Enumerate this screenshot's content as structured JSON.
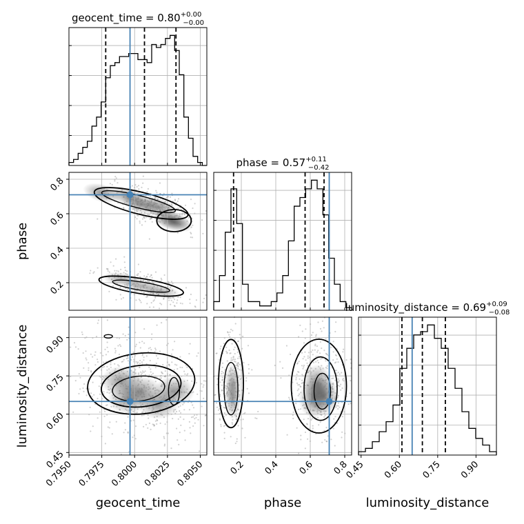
{
  "chart_data": {
    "type": "corner",
    "grid": true,
    "colors": {
      "truth": "#4682b4",
      "hist": "#000000",
      "scatter": "#777777",
      "grid": "#b0b0b0"
    },
    "parameters": [
      {
        "name": "geocent_time",
        "xlabel": "geocent_time",
        "title_main": "geocent_time = 0.80",
        "title_up": "+0.00",
        "title_down": "−0.00",
        "range": [
          0.795,
          0.8055
        ],
        "ticks": [
          0.795,
          0.7975,
          0.8,
          0.8025,
          0.805
        ],
        "tick_labels": [
          "0.7950",
          "0.7975",
          "0.8000",
          "0.8025",
          "0.8050"
        ],
        "truth": 0.79965,
        "quantiles": [
          0.7978,
          0.80075,
          0.80315
        ]
      },
      {
        "name": "phase",
        "xlabel": "phase",
        "ylabel": "phase",
        "title_main": "phase = 0.57",
        "title_up": "+0.11",
        "title_down": "−0.42",
        "range": [
          0.04,
          0.84
        ],
        "ticks": [
          0.2,
          0.4,
          0.6,
          0.8
        ],
        "tick_labels": [
          "0.2",
          "0.4",
          "0.6",
          "0.8"
        ],
        "truth": 0.71,
        "quantiles": [
          0.155,
          0.57,
          0.68
        ]
      },
      {
        "name": "luminosity_distance",
        "xlabel": "luminosity_distance",
        "ylabel": "luminosity_distance",
        "title_main": "luminosity_distance = 0.69",
        "title_up": "+0.09",
        "title_down": "−0.08",
        "range": [
          0.44,
          0.98
        ],
        "ticks": [
          0.45,
          0.6,
          0.75,
          0.9
        ],
        "tick_labels": [
          "0.45",
          "0.60",
          "0.75",
          "0.90"
        ],
        "truth": 0.65,
        "quantiles": [
          0.61,
          0.69,
          0.78
        ]
      }
    ],
    "histograms": [
      {
        "parameter": "geocent_time",
        "counts": [
          1,
          2,
          4,
          6,
          8,
          13,
          16,
          21,
          29,
          33,
          34,
          36,
          36,
          37,
          37,
          35,
          35,
          34,
          40,
          39,
          40,
          42,
          43,
          38,
          30,
          16,
          9,
          3,
          1,
          0
        ]
      },
      {
        "parameter": "phase",
        "counts": [
          1,
          4,
          9,
          14,
          10,
          3,
          1,
          1,
          0.5,
          0.5,
          1,
          2,
          4,
          8,
          12,
          13,
          14,
          15,
          14,
          11,
          6,
          3,
          1,
          0.3
        ]
      },
      {
        "parameter": "luminosity_distance",
        "counts": [
          0.5,
          1,
          2,
          3.5,
          5,
          7.5,
          13,
          16,
          18,
          18.5,
          19.5,
          17.5,
          16,
          13,
          10,
          6.5,
          4,
          2.5,
          1.5,
          0.5
        ]
      }
    ]
  }
}
